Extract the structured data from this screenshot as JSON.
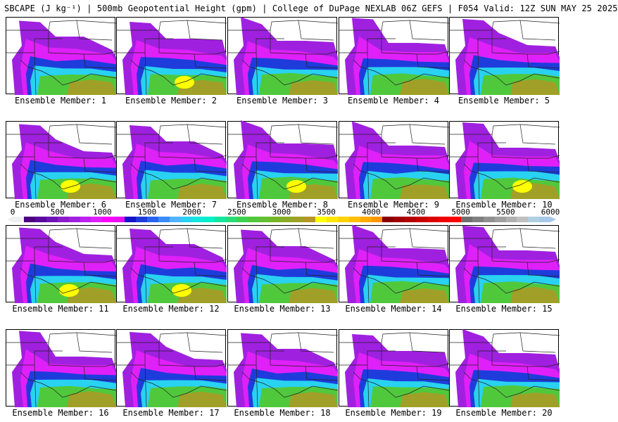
{
  "title": "SBCAPE (J kg⁻¹) | 500mb Geopotential Height (gpm) | College of DuPage NEXLAB 06Z GEFS | F054 Valid: 12Z SUN MAY 25 2025",
  "colorbar": {
    "ticks": [
      "0",
      "500",
      "1000",
      "1500",
      "2000",
      "2500",
      "3000",
      "3500",
      "4000",
      "4500",
      "5000",
      "5500",
      "6000"
    ],
    "colors": [
      "#f0f0f0",
      "#4b0082",
      "#5a0a9e",
      "#6e14b4",
      "#8a1ccc",
      "#a020e0",
      "#c020f0",
      "#e020f8",
      "#ff00ff",
      "#e810f0",
      "#1414c8",
      "#1e3cdc",
      "#2864f0",
      "#3c8cf8",
      "#50b4ff",
      "#28d2f0",
      "#14e6dc",
      "#00f0c8",
      "#14e6a0",
      "#28dc78",
      "#3cd250",
      "#50c83c",
      "#64be32",
      "#78b428",
      "#8caa28",
      "#a0a028",
      "#b49628",
      "#ffff00",
      "#ffe600",
      "#ffd200",
      "#ffbe00",
      "#ffaa00",
      "#ff9600",
      "#8b0000",
      "#a00000",
      "#b40000",
      "#c80000",
      "#dc0000",
      "#f00000",
      "#ff0000",
      "#707070",
      "#808080",
      "#909090",
      "#a0a0a0",
      "#b0b0b0",
      "#c0c0c0",
      "#b0d0e0",
      "#a8c8e8"
    ]
  },
  "members": [
    {
      "label": "Ensemble Member: 1",
      "hot": false
    },
    {
      "label": "Ensemble Member: 2",
      "hot": true
    },
    {
      "label": "Ensemble Member: 3",
      "hot": false
    },
    {
      "label": "Ensemble Member: 4",
      "hot": false
    },
    {
      "label": "Ensemble Member: 5",
      "hot": false
    },
    {
      "label": "Ensemble Member: 6",
      "hot": true
    },
    {
      "label": "Ensemble Member: 7",
      "hot": false
    },
    {
      "label": "Ensemble Member: 8",
      "hot": true
    },
    {
      "label": "Ensemble Member: 9",
      "hot": false
    },
    {
      "label": "Ensemble Member: 10",
      "hot": true
    },
    {
      "label": "Ensemble Member: 11",
      "hot": true
    },
    {
      "label": "Ensemble Member: 12",
      "hot": true
    },
    {
      "label": "Ensemble Member: 13",
      "hot": false
    },
    {
      "label": "Ensemble Member: 14",
      "hot": false
    },
    {
      "label": "Ensemble Member: 15",
      "hot": false
    },
    {
      "label": "Ensemble Member: 16",
      "hot": false
    },
    {
      "label": "Ensemble Member: 17",
      "hot": false
    },
    {
      "label": "Ensemble Member: 18",
      "hot": false
    },
    {
      "label": "Ensemble Member: 19",
      "hot": false
    },
    {
      "label": "Ensemble Member: 20",
      "hot": false
    }
  ]
}
